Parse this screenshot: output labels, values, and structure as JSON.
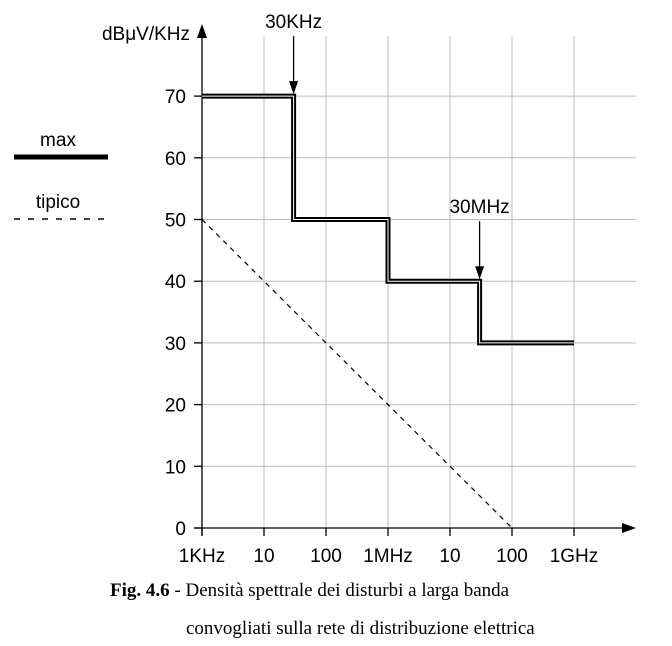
{
  "chart_data": {
    "type": "line",
    "ylabel": "dBμV/KHz",
    "x_scale": "log",
    "x_tick_labels": [
      "1KHz",
      "10",
      "100",
      "1MHz",
      "10",
      "100",
      "1GHz"
    ],
    "x_tick_hz": [
      1000,
      10000,
      100000,
      1000000,
      10000000,
      100000000,
      1000000000
    ],
    "y_ticks": [
      0,
      10,
      20,
      30,
      40,
      50,
      60,
      70
    ],
    "ylim": [
      0,
      70
    ],
    "grid": true,
    "series": [
      {
        "name": "max",
        "style": "solid",
        "color": "#000000",
        "x_hz": [
          1000,
          30000,
          30000,
          1000000,
          1000000,
          30000000,
          30000000,
          1000000000
        ],
        "y": [
          70,
          70,
          50,
          50,
          40,
          40,
          30,
          30
        ]
      },
      {
        "name": "tipico",
        "style": "dashed",
        "color": "#000000",
        "x_hz": [
          1000,
          100000000
        ],
        "y": [
          50,
          0
        ]
      }
    ],
    "annotations": [
      {
        "text": "30KHz",
        "x_hz": 30000,
        "y": 70
      },
      {
        "text": "30MHz",
        "x_hz": 30000000,
        "y": 40
      }
    ],
    "legend_placement": "left"
  },
  "caption": {
    "label": "Fig. 4.6",
    "line1": " - Densità spettrale dei disturbi a larga banda",
    "line2": "convogliati sulla rete di distribuzione elettrica"
  }
}
